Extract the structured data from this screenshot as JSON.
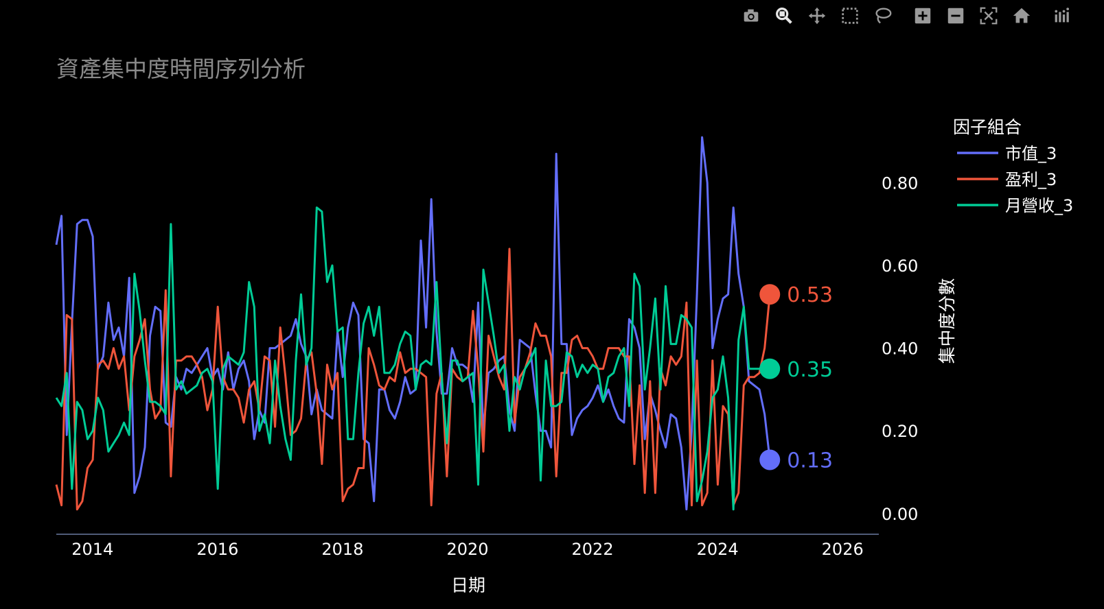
{
  "modebar": [
    {
      "name": "camera-icon",
      "title": "Download plot as a png"
    },
    {
      "name": "zoom-icon",
      "title": "Zoom"
    },
    {
      "name": "pan-icon",
      "title": "Pan"
    },
    {
      "name": "box-select-icon",
      "title": "Box Select"
    },
    {
      "name": "lasso-select-icon",
      "title": "Lasso Select"
    },
    {
      "name": "zoom-in-icon",
      "title": "Zoom in"
    },
    {
      "name": "zoom-out-icon",
      "title": "Zoom out"
    },
    {
      "name": "autoscale-icon",
      "title": "Autoscale"
    },
    {
      "name": "reset-axes-icon",
      "title": "Reset axes"
    },
    {
      "name": "plotly-logo-icon",
      "title": "Produced with Plotly"
    }
  ],
  "colors": {
    "background": "#000000",
    "axis_line": "#6b7aa1",
    "title": "#8a8a8a",
    "text": "#ffffff",
    "modebar_icon": "#9a9a9a",
    "modebar_active": "#e6e6e6"
  },
  "chart_data": {
    "type": "line",
    "title": "資產集中度時間序列分析",
    "xlabel": "日期",
    "ylabel": "集中度分數",
    "x_tick_labels": [
      "2014",
      "2016",
      "2018",
      "2020",
      "2022",
      "2024",
      "2026"
    ],
    "y_tick_labels": [
      "0.00",
      "0.20",
      "0.40",
      "0.60",
      "0.80"
    ],
    "xlim": [
      2013.42,
      2026.58
    ],
    "ylim": [
      -0.05,
      0.94
    ],
    "y_axis_side": "right",
    "grid": false,
    "legend": {
      "title": "因子組合",
      "position": "top-right"
    },
    "x_start": 2013.42,
    "x_step": 0.08333,
    "series": [
      {
        "name": "市值_3",
        "color": "#636efa",
        "last_label": "0.13",
        "values": [
          0.65,
          0.72,
          0.19,
          0.46,
          0.7,
          0.71,
          0.71,
          0.67,
          0.35,
          0.38,
          0.51,
          0.42,
          0.45,
          0.38,
          0.57,
          0.05,
          0.09,
          0.16,
          0.43,
          0.5,
          0.49,
          0.22,
          0.21,
          0.33,
          0.3,
          0.35,
          0.34,
          0.36,
          0.38,
          0.4,
          0.33,
          0.35,
          0.3,
          0.39,
          0.3,
          0.35,
          0.37,
          0.32,
          0.18,
          0.25,
          0.22,
          0.4,
          0.4,
          0.41,
          0.42,
          0.43,
          0.47,
          0.41,
          0.38,
          0.24,
          0.3,
          0.25,
          0.24,
          0.23,
          0.44,
          0.33,
          0.45,
          0.51,
          0.48,
          0.18,
          0.17,
          0.03,
          0.3,
          0.3,
          0.25,
          0.23,
          0.27,
          0.33,
          0.29,
          0.3,
          0.66,
          0.45,
          0.76,
          0.44,
          0.29,
          0.29,
          0.4,
          0.36,
          0.36,
          0.35,
          0.27,
          0.51,
          0.2,
          0.34,
          0.35,
          0.37,
          0.38,
          0.25,
          0.2,
          0.42,
          0.41,
          0.4,
          0.29,
          0.2,
          0.2,
          0.16,
          0.87,
          0.41,
          0.41,
          0.19,
          0.23,
          0.25,
          0.26,
          0.28,
          0.31,
          0.27,
          0.3,
          0.26,
          0.23,
          0.22,
          0.47,
          0.45,
          0.4,
          0.18,
          0.29,
          0.25,
          0.2,
          0.16,
          0.24,
          0.23,
          0.16,
          0.01,
          0.2,
          0.53,
          0.91,
          0.8,
          0.4,
          0.47,
          0.52,
          0.53,
          0.74,
          0.58,
          0.5,
          0.32,
          0.31,
          0.3,
          0.24,
          0.13
        ]
      },
      {
        "name": "盈利_3",
        "color": "#ef553b",
        "last_label": "0.53",
        "values": [
          0.07,
          0.02,
          0.48,
          0.47,
          0.01,
          0.03,
          0.11,
          0.13,
          0.36,
          0.37,
          0.35,
          0.4,
          0.35,
          0.38,
          0.25,
          0.38,
          0.42,
          0.47,
          0.3,
          0.23,
          0.25,
          0.54,
          0.09,
          0.37,
          0.37,
          0.38,
          0.38,
          0.36,
          0.33,
          0.25,
          0.3,
          0.5,
          0.33,
          0.3,
          0.3,
          0.28,
          0.22,
          0.3,
          0.32,
          0.25,
          0.38,
          0.37,
          0.21,
          0.45,
          0.33,
          0.19,
          0.2,
          0.23,
          0.37,
          0.39,
          0.29,
          0.12,
          0.36,
          0.3,
          0.34,
          0.03,
          0.06,
          0.07,
          0.11,
          0.11,
          0.4,
          0.36,
          0.31,
          0.3,
          0.33,
          0.32,
          0.39,
          0.34,
          0.35,
          0.35,
          0.34,
          0.33,
          0.02,
          0.29,
          0.34,
          0.09,
          0.35,
          0.33,
          0.32,
          0.33,
          0.49,
          0.35,
          0.15,
          0.43,
          0.38,
          0.33,
          0.3,
          0.64,
          0.22,
          0.33,
          0.35,
          0.39,
          0.46,
          0.43,
          0.43,
          0.38,
          0.09,
          0.34,
          0.34,
          0.42,
          0.43,
          0.4,
          0.4,
          0.38,
          0.35,
          0.35,
          0.4,
          0.4,
          0.4,
          0.38,
          0.38,
          0.12,
          0.31,
          0.05,
          0.32,
          0.05,
          0.35,
          0.31,
          0.38,
          0.36,
          0.38,
          0.51,
          0.02,
          0.37,
          0.02,
          0.05,
          0.37,
          0.07,
          0.26,
          0.24,
          0.02,
          0.05,
          0.31,
          0.33,
          0.33,
          0.34,
          0.4,
          0.53
        ]
      },
      {
        "name": "月營收_3",
        "color": "#00cc96",
        "last_label": "0.35",
        "values": [
          0.28,
          0.26,
          0.34,
          0.06,
          0.27,
          0.25,
          0.18,
          0.2,
          0.28,
          0.25,
          0.15,
          0.17,
          0.19,
          0.22,
          0.19,
          0.58,
          0.49,
          0.37,
          0.27,
          0.27,
          0.26,
          0.24,
          0.7,
          0.3,
          0.32,
          0.29,
          0.3,
          0.31,
          0.34,
          0.35,
          0.32,
          0.06,
          0.35,
          0.38,
          0.37,
          0.36,
          0.39,
          0.56,
          0.5,
          0.2,
          0.24,
          0.17,
          0.37,
          0.26,
          0.18,
          0.13,
          0.37,
          0.53,
          0.36,
          0.4,
          0.74,
          0.73,
          0.56,
          0.6,
          0.44,
          0.45,
          0.18,
          0.18,
          0.34,
          0.46,
          0.5,
          0.43,
          0.5,
          0.34,
          0.34,
          0.36,
          0.41,
          0.44,
          0.43,
          0.3,
          0.36,
          0.37,
          0.36,
          0.56,
          0.33,
          0.17,
          0.37,
          0.37,
          0.32,
          0.33,
          0.34,
          0.07,
          0.59,
          0.51,
          0.43,
          0.34,
          0.36,
          0.2,
          0.33,
          0.3,
          0.35,
          0.37,
          0.4,
          0.08,
          0.37,
          0.26,
          0.26,
          0.27,
          0.39,
          0.38,
          0.33,
          0.36,
          0.34,
          0.36,
          0.35,
          0.27,
          0.33,
          0.34,
          0.38,
          0.4,
          0.26,
          0.58,
          0.55,
          0.3,
          0.4,
          0.52,
          0.3,
          0.55,
          0.41,
          0.41,
          0.48,
          0.47,
          0.45,
          0.03,
          0.08,
          0.15,
          0.28,
          0.3,
          0.38,
          0.28,
          0.01,
          0.42,
          0.5,
          0.35,
          0.35,
          0.35,
          0.36,
          0.35
        ]
      }
    ]
  }
}
